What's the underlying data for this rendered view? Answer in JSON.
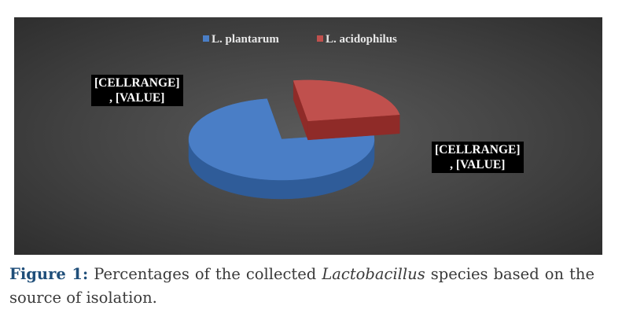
{
  "chart_data": {
    "type": "pie",
    "categories": [
      "L. plantarum",
      "L. acidophilus"
    ],
    "values": [
      75,
      25
    ],
    "colors": [
      "#4a7ec6",
      "#c0504d"
    ],
    "side_colors": [
      "#2f5c99",
      "#8f2b28"
    ],
    "data_labels": [
      {
        "line1": "[CELLRANGE]",
        "line2": ", [VALUE]"
      },
      {
        "line1": "[CELLRANGE]",
        "line2": ", [VALUE]"
      }
    ],
    "legend_position": "top",
    "style": "3d-exploded"
  },
  "caption": {
    "label": "Figure 1:",
    "text_before": "Percentages of the collected",
    "emphasis": "Lactobacillus",
    "text_after": "species based on the source of isolation."
  }
}
